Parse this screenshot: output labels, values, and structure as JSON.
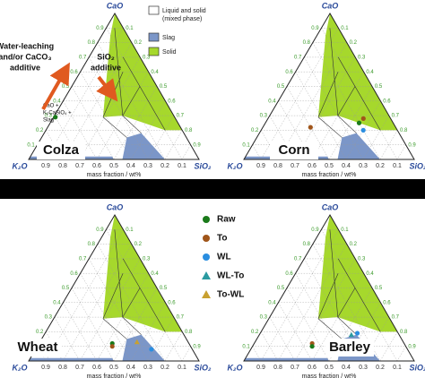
{
  "vertices": {
    "top": "CaO",
    "left": "K₂O",
    "right": "SiO₂"
  },
  "axis_label": "mass fraction / wt%",
  "ticks": [
    "0.9",
    "0.8",
    "0.7",
    "0.6",
    "0.5",
    "0.4",
    "0.3",
    "0.2",
    "0.1"
  ],
  "panels": [
    {
      "name": "Colza"
    },
    {
      "name": "Corn"
    },
    {
      "name": "Wheat"
    },
    {
      "name": "Barley"
    }
  ],
  "phase_legend": [
    {
      "label_lines": [
        "Liquid and solid",
        "(mixed phase)"
      ]
    },
    {
      "label_lines": [
        "Slag"
      ]
    },
    {
      "label_lines": [
        "Solid"
      ]
    }
  ],
  "annotations": {
    "leaching": [
      "Water-leaching",
      "and/or CaCO₃",
      "additive"
    ],
    "sio2": [
      "SiO₂",
      "additive"
    ],
    "phase_note": [
      "CaO +",
      "K₂CaSiO₄ +",
      "Slag"
    ]
  },
  "marker_legend": [
    "Raw",
    "To",
    "WL",
    "WL-To",
    "To-WL"
  ]
}
